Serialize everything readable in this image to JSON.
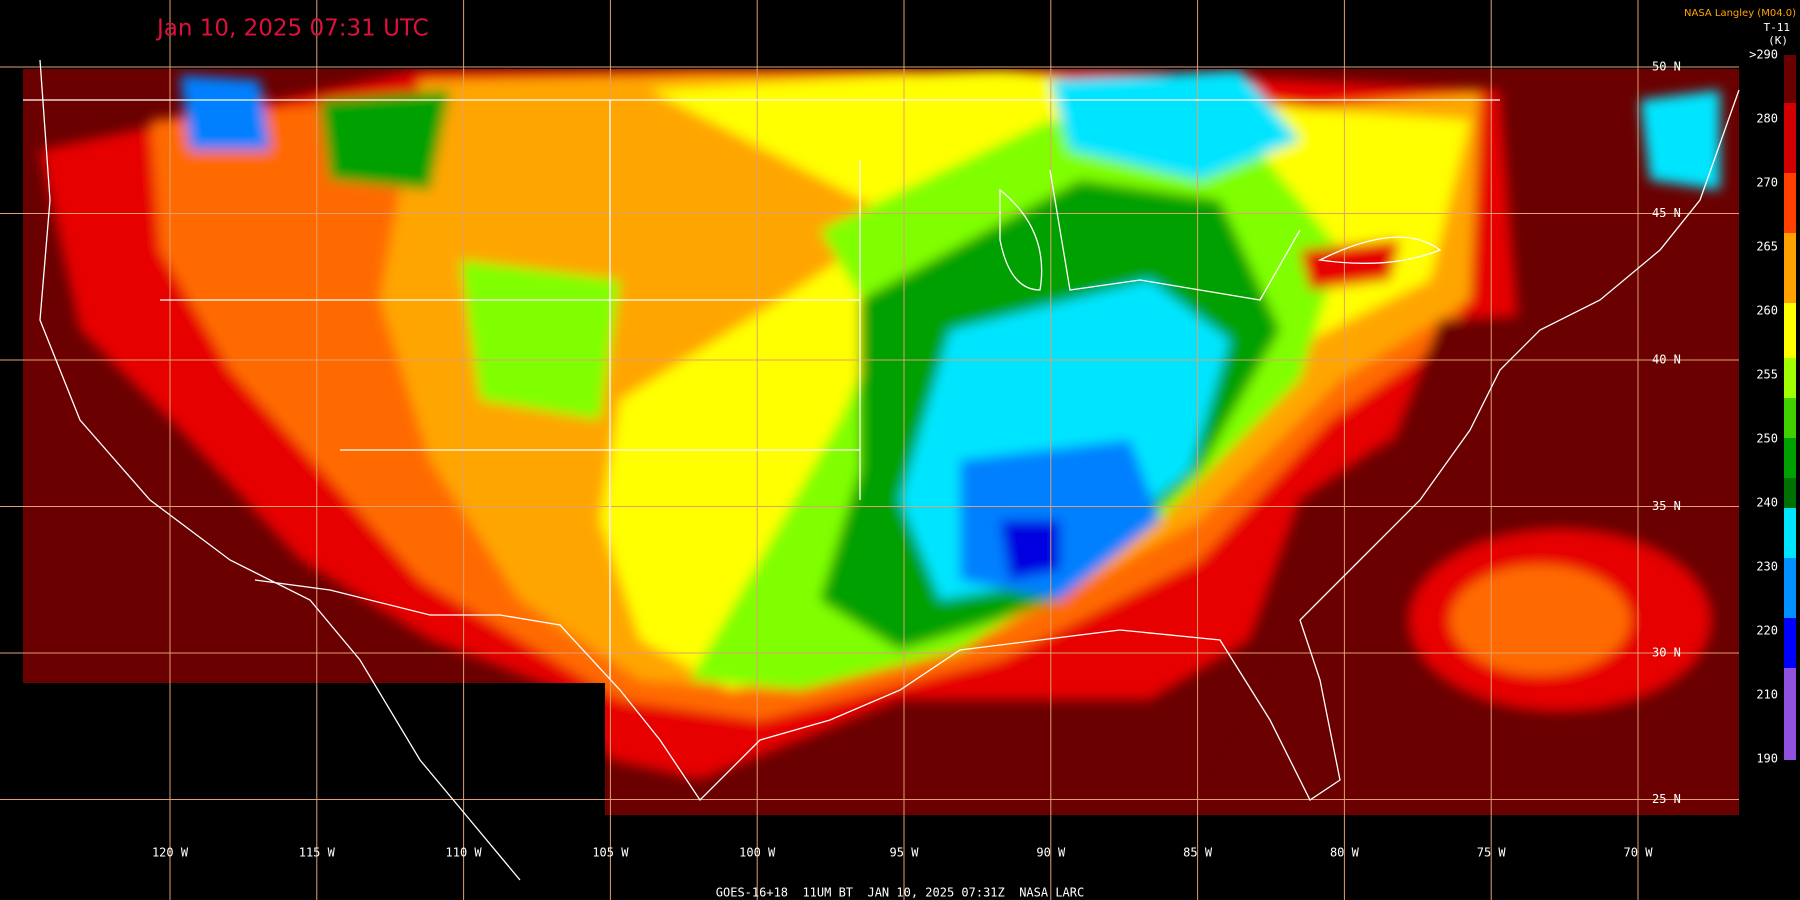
{
  "header": {
    "title": "Jan 10, 2025 07:31 UTC",
    "credit": "NASA Langley (M04.0)",
    "channel": "T-11",
    "unit": "(K)"
  },
  "colorbar": {
    "labels": [
      ">290",
      "280",
      "270",
      "265",
      "260",
      "255",
      "250",
      "240",
      "230",
      "220",
      "210",
      "190"
    ]
  },
  "latitude_labels": [
    "50 N",
    "45 N",
    "40 N",
    "35 N",
    "30 N",
    "25 N"
  ],
  "longitude_labels": [
    "120 W",
    "115 W",
    "110 W",
    "105 W",
    "100 W",
    "95 W",
    "90 W",
    "85 W",
    "80 W",
    "75 W",
    "70 W"
  ],
  "footer": "GOES-16+18  11UM BT  JAN 10, 2025 07:31Z  NASA LARC"
}
